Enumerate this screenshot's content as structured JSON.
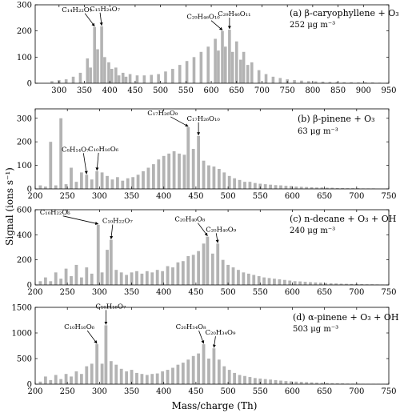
{
  "figure": {
    "ylabel": "Signal (ions s⁻¹)",
    "xlabel": "Mass/charge (Th)"
  },
  "chart_data": [
    {
      "type": "bar",
      "label": "(a) β-caryophyllene + O₃",
      "sublabel": "252 μg m⁻³",
      "xlim": [
        253,
        950
      ],
      "ylim": [
        0,
        300
      ],
      "xticks": [
        300,
        350,
        400,
        450,
        500,
        550,
        600,
        650,
        700,
        750,
        800,
        850,
        900,
        950
      ],
      "yticks": [
        0,
        100,
        200,
        300
      ],
      "peaks": [
        [
          286,
          8
        ],
        [
          300,
          12
        ],
        [
          314,
          15
        ],
        [
          328,
          25
        ],
        [
          342,
          40
        ],
        [
          356,
          95
        ],
        [
          362,
          60
        ],
        [
          370,
          215
        ],
        [
          376,
          130
        ],
        [
          384,
          218
        ],
        [
          390,
          100
        ],
        [
          398,
          80
        ],
        [
          404,
          55
        ],
        [
          412,
          60
        ],
        [
          418,
          30
        ],
        [
          426,
          40
        ],
        [
          432,
          25
        ],
        [
          440,
          35
        ],
        [
          454,
          30
        ],
        [
          468,
          30
        ],
        [
          482,
          32
        ],
        [
          496,
          35
        ],
        [
          510,
          45
        ],
        [
          524,
          55
        ],
        [
          538,
          70
        ],
        [
          552,
          85
        ],
        [
          566,
          100
        ],
        [
          580,
          120
        ],
        [
          594,
          140
        ],
        [
          608,
          170
        ],
        [
          614,
          125
        ],
        [
          622,
          200
        ],
        [
          628,
          140
        ],
        [
          636,
          205
        ],
        [
          642,
          120
        ],
        [
          650,
          160
        ],
        [
          658,
          90
        ],
        [
          664,
          120
        ],
        [
          672,
          70
        ],
        [
          680,
          80
        ],
        [
          694,
          50
        ],
        [
          708,
          35
        ],
        [
          722,
          25
        ],
        [
          736,
          20
        ],
        [
          750,
          15
        ],
        [
          764,
          12
        ],
        [
          778,
          10
        ],
        [
          792,
          8
        ],
        [
          806,
          7
        ],
        [
          820,
          6
        ],
        [
          834,
          5
        ],
        [
          848,
          5
        ],
        [
          862,
          4
        ],
        [
          876,
          4
        ],
        [
          890,
          3
        ],
        [
          904,
          3
        ],
        [
          918,
          3
        ],
        [
          932,
          2
        ]
      ],
      "annotations": [
        {
          "text": "C₁₄H₂₂O₇",
          "x": 370,
          "y": 215
        },
        {
          "text": "C₁₅H₂₄O₇",
          "x": 384,
          "y": 218
        },
        {
          "text": "C₂₉H₄₆O₁₀",
          "x": 622,
          "y": 200
        },
        {
          "text": "C₂₉H₄₆O₁₁",
          "x": 636,
          "y": 205
        }
      ]
    },
    {
      "type": "bar",
      "label": "(b) β-pinene + O₃",
      "sublabel": "63 μg m⁻³",
      "xlim": [
        200,
        750
      ],
      "ylim": [
        0,
        340
      ],
      "xticks": [
        200,
        250,
        300,
        350,
        400,
        450,
        500,
        550,
        600,
        650,
        700,
        750
      ],
      "yticks": [
        0,
        100,
        200,
        300
      ],
      "peaks": [
        [
          208,
          15
        ],
        [
          216,
          10
        ],
        [
          224,
          200
        ],
        [
          232,
          15
        ],
        [
          240,
          300
        ],
        [
          248,
          20
        ],
        [
          256,
          90
        ],
        [
          264,
          30
        ],
        [
          272,
          70
        ],
        [
          280,
          60
        ],
        [
          288,
          40
        ],
        [
          296,
          75
        ],
        [
          304,
          70
        ],
        [
          312,
          55
        ],
        [
          320,
          40
        ],
        [
          328,
          50
        ],
        [
          336,
          35
        ],
        [
          344,
          45
        ],
        [
          352,
          50
        ],
        [
          360,
          60
        ],
        [
          368,
          75
        ],
        [
          376,
          90
        ],
        [
          384,
          105
        ],
        [
          392,
          125
        ],
        [
          400,
          140
        ],
        [
          408,
          150
        ],
        [
          416,
          160
        ],
        [
          424,
          150
        ],
        [
          432,
          145
        ],
        [
          438,
          262
        ],
        [
          446,
          170
        ],
        [
          454,
          225
        ],
        [
          462,
          120
        ],
        [
          470,
          100
        ],
        [
          478,
          95
        ],
        [
          486,
          85
        ],
        [
          494,
          70
        ],
        [
          502,
          55
        ],
        [
          510,
          45
        ],
        [
          518,
          38
        ],
        [
          526,
          30
        ],
        [
          534,
          30
        ],
        [
          542,
          25
        ],
        [
          550,
          22
        ],
        [
          558,
          20
        ],
        [
          566,
          18
        ],
        [
          574,
          16
        ],
        [
          582,
          15
        ],
        [
          590,
          13
        ],
        [
          598,
          12
        ],
        [
          606,
          10
        ],
        [
          614,
          9
        ],
        [
          622,
          8
        ],
        [
          630,
          7
        ],
        [
          638,
          6
        ],
        [
          646,
          6
        ],
        [
          654,
          5
        ],
        [
          662,
          5
        ],
        [
          670,
          4
        ],
        [
          678,
          4
        ],
        [
          686,
          3
        ],
        [
          694,
          3
        ],
        [
          702,
          3
        ],
        [
          710,
          2
        ],
        [
          718,
          2
        ],
        [
          726,
          2
        ]
      ],
      "annotations": [
        {
          "text": "C₈H₁₄O₇",
          "x": 280,
          "y": 60
        },
        {
          "text": "C₁₀H₁₆O₆",
          "x": 296,
          "y": 75
        },
        {
          "text": "C₁₇H₂₆O₉",
          "x": 438,
          "y": 262
        },
        {
          "text": "C₁₇H₂₆O₁₀",
          "x": 454,
          "y": 225
        }
      ]
    },
    {
      "type": "bar",
      "label": "(c) n-decane + O₃ + OH",
      "sublabel": "240 μg m⁻³",
      "xlim": [
        200,
        750
      ],
      "ylim": [
        0,
        600
      ],
      "xticks": [
        200,
        250,
        300,
        350,
        400,
        450,
        500,
        550,
        600,
        650,
        700,
        750
      ],
      "yticks": [
        0,
        200,
        400,
        600
      ],
      "peaks": [
        [
          208,
          30
        ],
        [
          216,
          60
        ],
        [
          224,
          30
        ],
        [
          232,
          100
        ],
        [
          240,
          50
        ],
        [
          248,
          130
        ],
        [
          256,
          70
        ],
        [
          264,
          160
        ],
        [
          272,
          60
        ],
        [
          280,
          140
        ],
        [
          288,
          90
        ],
        [
          298,
          480
        ],
        [
          304,
          100
        ],
        [
          312,
          280
        ],
        [
          318,
          360
        ],
        [
          326,
          120
        ],
        [
          334,
          100
        ],
        [
          342,
          80
        ],
        [
          350,
          100
        ],
        [
          358,
          110
        ],
        [
          366,
          90
        ],
        [
          374,
          110
        ],
        [
          382,
          100
        ],
        [
          390,
          120
        ],
        [
          398,
          110
        ],
        [
          406,
          150
        ],
        [
          414,
          140
        ],
        [
          422,
          180
        ],
        [
          430,
          190
        ],
        [
          438,
          230
        ],
        [
          446,
          240
        ],
        [
          454,
          270
        ],
        [
          462,
          330
        ],
        [
          468,
          385
        ],
        [
          476,
          250
        ],
        [
          484,
          330
        ],
        [
          492,
          200
        ],
        [
          500,
          160
        ],
        [
          508,
          140
        ],
        [
          516,
          120
        ],
        [
          524,
          100
        ],
        [
          532,
          90
        ],
        [
          540,
          80
        ],
        [
          548,
          70
        ],
        [
          556,
          60
        ],
        [
          564,
          55
        ],
        [
          572,
          50
        ],
        [
          580,
          45
        ],
        [
          588,
          40
        ],
        [
          596,
          35
        ],
        [
          604,
          30
        ],
        [
          612,
          28
        ],
        [
          620,
          25
        ],
        [
          628,
          22
        ],
        [
          636,
          20
        ],
        [
          644,
          18
        ],
        [
          652,
          15
        ],
        [
          660,
          13
        ],
        [
          668,
          12
        ],
        [
          676,
          10
        ],
        [
          684,
          9
        ],
        [
          692,
          8
        ],
        [
          700,
          7
        ],
        [
          708,
          6
        ],
        [
          716,
          5
        ],
        [
          724,
          5
        ],
        [
          732,
          4
        ],
        [
          740,
          3
        ]
      ],
      "annotations": [
        {
          "text": "C₁₀H₂₂O₆",
          "x": 298,
          "y": 480
        },
        {
          "text": "C₁₀H₂₂O₇",
          "x": 318,
          "y": 360
        },
        {
          "text": "C₂₀H₄₀O₈",
          "x": 468,
          "y": 385
        },
        {
          "text": "C₂₀H₄₀O₉",
          "x": 484,
          "y": 330
        }
      ]
    },
    {
      "type": "bar",
      "label": "(d) α-pinene + O₃ + OH",
      "sublabel": "503 μg m⁻³",
      "xlim": [
        200,
        750
      ],
      "ylim": [
        0,
        1500
      ],
      "xticks": [
        200,
        250,
        300,
        350,
        400,
        450,
        500,
        550,
        600,
        650,
        700,
        750
      ],
      "yticks": [
        0,
        500,
        1000,
        1500
      ],
      "peaks": [
        [
          208,
          50
        ],
        [
          216,
          150
        ],
        [
          224,
          80
        ],
        [
          232,
          180
        ],
        [
          240,
          100
        ],
        [
          248,
          200
        ],
        [
          256,
          150
        ],
        [
          264,
          250
        ],
        [
          272,
          200
        ],
        [
          280,
          350
        ],
        [
          288,
          400
        ],
        [
          296,
          780
        ],
        [
          304,
          400
        ],
        [
          310,
          1150
        ],
        [
          318,
          450
        ],
        [
          326,
          380
        ],
        [
          334,
          300
        ],
        [
          342,
          250
        ],
        [
          350,
          280
        ],
        [
          358,
          220
        ],
        [
          366,
          200
        ],
        [
          374,
          180
        ],
        [
          382,
          200
        ],
        [
          390,
          210
        ],
        [
          398,
          250
        ],
        [
          406,
          280
        ],
        [
          414,
          320
        ],
        [
          422,
          380
        ],
        [
          430,
          420
        ],
        [
          438,
          480
        ],
        [
          446,
          550
        ],
        [
          454,
          600
        ],
        [
          462,
          780
        ],
        [
          470,
          500
        ],
        [
          478,
          700
        ],
        [
          486,
          480
        ],
        [
          494,
          350
        ],
        [
          502,
          280
        ],
        [
          510,
          220
        ],
        [
          518,
          180
        ],
        [
          526,
          160
        ],
        [
          534,
          140
        ],
        [
          542,
          120
        ],
        [
          550,
          110
        ],
        [
          558,
          100
        ],
        [
          566,
          90
        ],
        [
          574,
          80
        ],
        [
          582,
          70
        ],
        [
          590,
          60
        ],
        [
          598,
          55
        ],
        [
          606,
          50
        ],
        [
          614,
          45
        ],
        [
          622,
          40
        ],
        [
          630,
          35
        ],
        [
          638,
          30
        ],
        [
          646,
          25
        ],
        [
          654,
          22
        ],
        [
          662,
          20
        ],
        [
          670,
          18
        ],
        [
          678,
          15
        ],
        [
          686,
          12
        ],
        [
          694,
          10
        ],
        [
          702,
          9
        ],
        [
          710,
          8
        ],
        [
          718,
          7
        ],
        [
          726,
          6
        ],
        [
          734,
          5
        ],
        [
          742,
          4
        ]
      ],
      "annotations": [
        {
          "text": "C₁₀H₁₆O₆",
          "x": 296,
          "y": 780
        },
        {
          "text": "C₁₀H₁₆O₇",
          "x": 310,
          "y": 1150
        },
        {
          "text": "C₂₀H₃₄O₈",
          "x": 462,
          "y": 780
        },
        {
          "text": "C₂₀H₃₄O₉",
          "x": 478,
          "y": 700
        }
      ]
    }
  ]
}
